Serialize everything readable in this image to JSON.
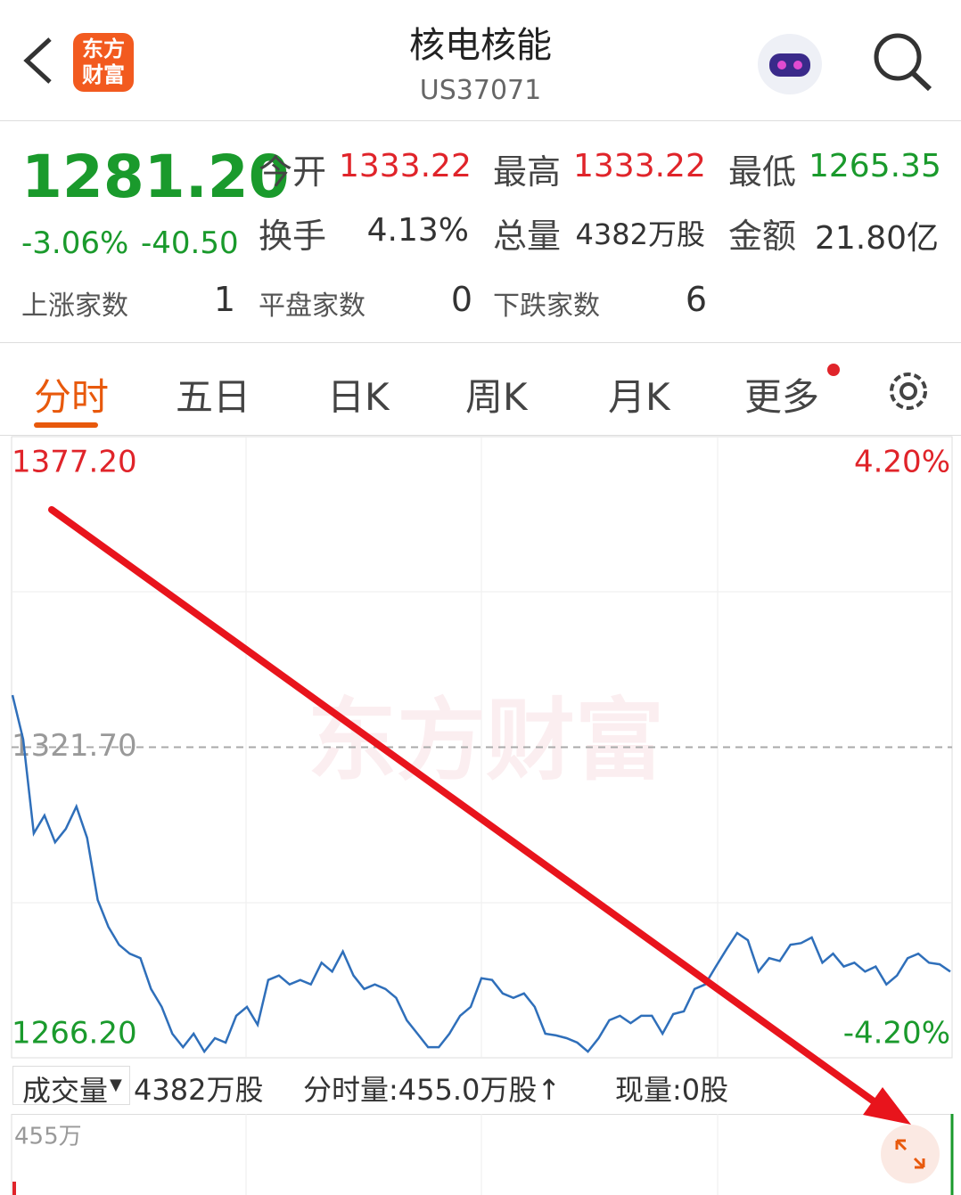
{
  "header": {
    "logo_line1": "东方",
    "logo_line2": "财富",
    "title": "核电核能",
    "code": "US37071"
  },
  "quote": {
    "price": "1281.20",
    "change_pct": "-3.06%",
    "change": "-40.50",
    "fields": [
      {
        "label": "今开",
        "value": "1333.22"
      },
      {
        "label": "最高",
        "value": "1333.22"
      },
      {
        "label": "最低",
        "value": "1265.35"
      },
      {
        "label": "换手",
        "value": "4.13%"
      },
      {
        "label": "总量",
        "value": "4382万股"
      },
      {
        "label": "金额",
        "value": "21.80亿"
      }
    ],
    "breadth": [
      {
        "label": "上涨家数",
        "value": "1"
      },
      {
        "label": "平盘家数",
        "value": "0"
      },
      {
        "label": "下跌家数",
        "value": "6"
      }
    ]
  },
  "tabs": [
    "分时",
    "五日",
    "日K",
    "周K",
    "月K",
    "更多"
  ],
  "chart": {
    "type": "line",
    "color": "#2f6fba",
    "watermark": "东方财富",
    "values": [
      1331.0,
      1323.1,
      1306.3,
      1309.5,
      1304.7,
      1307.1,
      1311.1,
      1305.5,
      1294.4,
      1289.6,
      1286.4,
      1284.8,
      1284.0,
      1278.5,
      1275.3,
      1270.5,
      1268.1,
      1270.5,
      1267.3,
      1269.7,
      1268.9,
      1273.7,
      1275.3,
      1272.1,
      1280.1,
      1280.9,
      1279.3,
      1280.1,
      1279.3,
      1283.2,
      1281.6,
      1285.2,
      1280.9,
      1278.5,
      1279.3,
      1278.5,
      1276.9,
      1272.9,
      1270.5,
      1268.1,
      1268.1,
      1270.5,
      1273.7,
      1275.3,
      1280.4,
      1280.1,
      1277.7,
      1276.9,
      1277.7,
      1275.3,
      1270.5,
      1270.2,
      1269.7,
      1268.9,
      1267.3,
      1269.7,
      1272.9,
      1273.7,
      1272.4,
      1273.7,
      1273.7,
      1270.5,
      1274.0,
      1274.5,
      1278.5,
      1279.3,
      1282.5,
      1285.6,
      1288.5,
      1287.2,
      1281.6,
      1284.0,
      1283.5,
      1286.4,
      1286.7,
      1287.7,
      1283.2,
      1284.8,
      1282.5,
      1283.2,
      1281.6,
      1282.5,
      1279.3,
      1280.9,
      1284.0,
      1284.8,
      1283.2,
      1282.9,
      1281.6
    ],
    "ylim": [
      1266.2,
      1377.2
    ],
    "yticks": [
      {
        "value": 1266.2,
        "label": "1266.20"
      },
      {
        "value": 1321.7,
        "label": "1321.70"
      },
      {
        "value": 1377.2,
        "label": "1377.20"
      }
    ],
    "y2lim": [
      -4.2,
      4.2
    ],
    "y2ticks": [
      {
        "value": -4.2,
        "label": "-4.20%"
      },
      {
        "value": 4.2,
        "label": "4.20%"
      }
    ]
  },
  "volume": {
    "selector": "成交量",
    "total": "4382万股",
    "period": "分时量:455.0万股↑",
    "current": "现量:0股",
    "axis_label": "455万"
  }
}
